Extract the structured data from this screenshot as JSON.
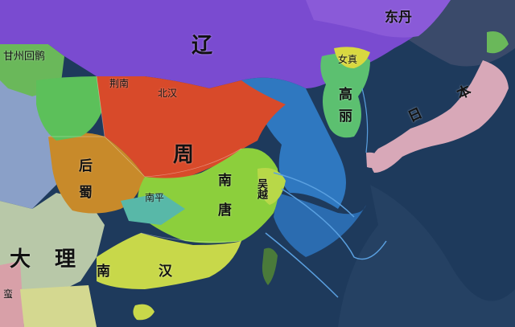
{
  "colors": {
    "sea": "#1e3a5c",
    "shallow_sea": "#2f78c0",
    "liao": "#7a4bd0",
    "zhou": "#d84a2a",
    "southern_tang": "#8ccf3c",
    "southern_han": "#c8d84a",
    "later_shu": "#c88a2a",
    "japan": "#d8a8b8",
    "goryeo": "#5cc070",
    "dali": "#b8c8a8",
    "tibet": "#8aa0c8",
    "uyghur": "#6ab85a"
  },
  "labels": {
    "liao": "辽",
    "dongdan": "东丹",
    "zhou": "周",
    "nantang": "南唐",
    "nanhan": "南汉",
    "houshu": "后蜀",
    "dali": "大理",
    "ri": "日本",
    "gaoli": "高丽",
    "ganzhou": "甘州回鹘",
    "wuyue": "吴越",
    "beihan": "北汉",
    "nuzhen": "女真",
    "nanping": "南平",
    "jingnan": "荆南",
    "zhu": "蛮"
  }
}
